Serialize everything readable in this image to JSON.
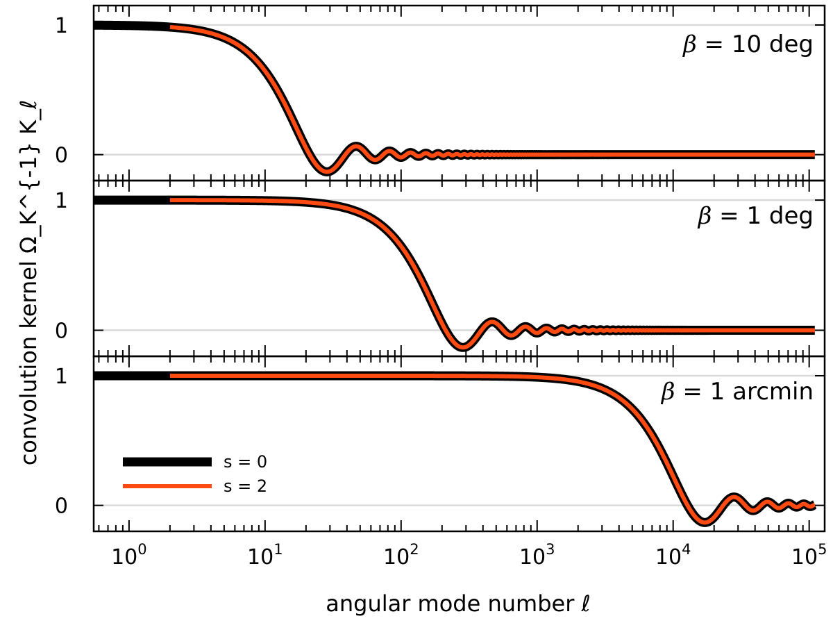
{
  "chart_data": {
    "type": "line",
    "xlabel": "angular mode number ℓ",
    "ylabel": "convolution kernel Ω_K^{-1} K_ℓ",
    "x_scale": "log",
    "xlim": [
      0.55,
      130000
    ],
    "x_ticks": [
      {
        "value": 1,
        "base": "10",
        "exp": "0"
      },
      {
        "value": 10,
        "base": "10",
        "exp": "1"
      },
      {
        "value": 100,
        "base": "10",
        "exp": "2"
      },
      {
        "value": 1000,
        "base": "10",
        "exp": "3"
      },
      {
        "value": 10000,
        "base": "10",
        "exp": "4"
      },
      {
        "value": 100000,
        "base": "10",
        "exp": "5"
      }
    ],
    "ylim": [
      -0.2,
      1.15
    ],
    "y_ticks": [
      {
        "value": 0,
        "label": "0"
      },
      {
        "value": 1,
        "label": "1"
      }
    ],
    "grid": "horizontal at y=0 and y=1",
    "legend": {
      "placement": "lower-left of bottom panel",
      "entries": [
        {
          "label": "s = 0",
          "color": "#000000",
          "series": "s0"
        },
        {
          "label": "s = 2",
          "color": "#ff4a12",
          "series": "s2"
        }
      ]
    },
    "colors": {
      "s0": "#000000",
      "s2": "#ff4a12",
      "grid": "#d9d9d9"
    },
    "panels": [
      {
        "label": "β = 10 deg",
        "beta_label_symbol": "β",
        "beta_label_rest": " = 10 deg",
        "ell_half": 12.9,
        "ell_first_min": 28.5,
        "first_min_value": -0.14,
        "first_max": {
          "ell": 48,
          "value": 0.06
        },
        "series": [
          {
            "name": "s = 0",
            "x_range": [
              0.55,
              110000
            ]
          },
          {
            "name": "s = 2",
            "x_range": [
              2,
              110000
            ]
          }
        ]
      },
      {
        "label": "β = 1 deg",
        "beta_label_symbol": "β",
        "beta_label_rest": " = 1 deg",
        "ell_half": 129,
        "ell_first_min": 285,
        "first_min_value": -0.14,
        "first_max": {
          "ell": 480,
          "value": 0.06
        },
        "series": [
          {
            "name": "s = 0",
            "x_range": [
              0.55,
              110000
            ]
          },
          {
            "name": "s = 2",
            "x_range": [
              2,
              110000
            ]
          }
        ]
      },
      {
        "label": "β = 1 arcmin",
        "beta_label_symbol": "β",
        "beta_label_rest": " = 1 arcmin",
        "ell_half": 7740,
        "ell_first_min": 17100,
        "first_min_value": -0.14,
        "first_max": {
          "ell": 28800,
          "value": 0.06
        },
        "series": [
          {
            "name": "s = 0",
            "x_range": [
              0.55,
              110000
            ]
          },
          {
            "name": "s = 2",
            "x_range": [
              2,
              110000
            ]
          }
        ]
      }
    ]
  }
}
